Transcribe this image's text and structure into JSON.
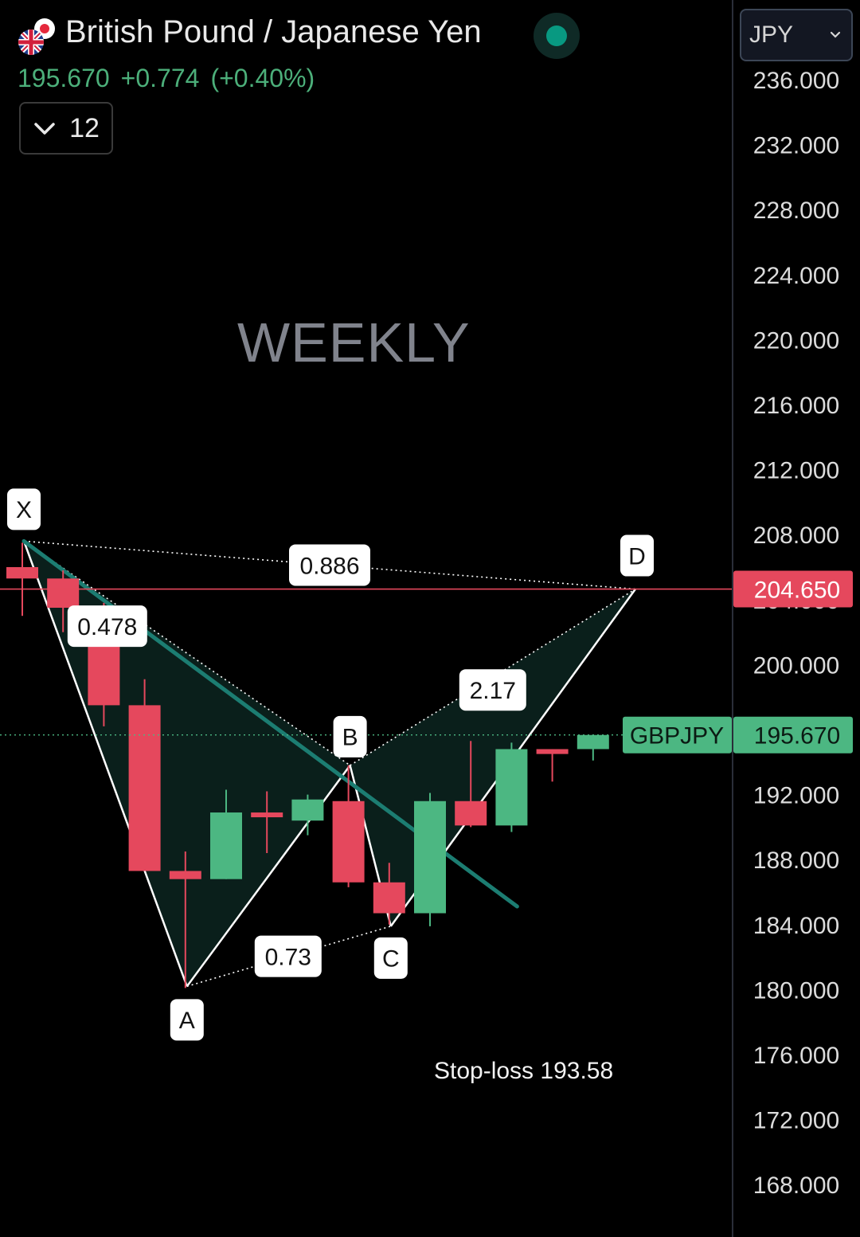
{
  "header": {
    "title": "British Pound / Japanese Yen",
    "last_price": "195.670",
    "change": "+0.774",
    "change_pct": "(+0.40%)",
    "collapse_count": "12",
    "currency": "JPY",
    "flag_icon": "uk-japan-flag-icon",
    "status_color": "#089981"
  },
  "watermark": "WEEKLY",
  "annotation": "Stop-loss 193.58",
  "colors": {
    "up": "#4cb782",
    "down": "#e5485d",
    "pattern_fill": "#0a1f1b",
    "trendline": "#1c7d72",
    "price_line": "#e5485d"
  },
  "chart_data": {
    "type": "candlestick",
    "symbol": "GBPJPY",
    "timeframe": "WEEKLY",
    "ylim": [
      165.0,
      240.0
    ],
    "yticks": [
      "236.000",
      "232.000",
      "228.000",
      "224.000",
      "220.000",
      "216.000",
      "212.000",
      "208.000",
      "204.000",
      "200.000",
      "196.000",
      "192.000",
      "188.000",
      "184.000",
      "180.000",
      "176.000",
      "172.000",
      "168.000"
    ],
    "candles": [
      {
        "open": 206.0,
        "high": 207.5,
        "low": 203.0,
        "close": 205.3
      },
      {
        "open": 205.3,
        "high": 205.8,
        "low": 202.0,
        "close": 203.5
      },
      {
        "open": 203.5,
        "high": 203.8,
        "low": 196.2,
        "close": 197.5
      },
      {
        "open": 197.5,
        "high": 199.1,
        "low": 187.3,
        "close": 187.3
      },
      {
        "open": 187.3,
        "high": 188.5,
        "low": 180.1,
        "close": 186.8
      },
      {
        "open": 186.8,
        "high": 192.3,
        "low": 186.8,
        "close": 190.9
      },
      {
        "open": 190.9,
        "high": 192.2,
        "low": 188.4,
        "close": 190.7
      },
      {
        "open": 190.4,
        "high": 192.0,
        "low": 189.5,
        "close": 191.7
      },
      {
        "open": 191.6,
        "high": 193.8,
        "low": 186.3,
        "close": 186.6
      },
      {
        "open": 186.6,
        "high": 187.8,
        "low": 184.0,
        "close": 184.7
      },
      {
        "open": 184.7,
        "high": 192.1,
        "low": 183.9,
        "close": 191.6
      },
      {
        "open": 191.6,
        "high": 195.3,
        "low": 190.0,
        "close": 190.1
      },
      {
        "open": 190.1,
        "high": 195.2,
        "low": 189.7,
        "close": 194.8
      },
      {
        "open": 194.8,
        "high": 194.8,
        "low": 192.8,
        "close": 194.5
      },
      {
        "open": 194.8,
        "high": 195.7,
        "low": 194.1,
        "close": 195.67
      }
    ],
    "current_price": "195.670",
    "current_price_value": 195.67,
    "current_label": "GBPJPY",
    "red_line_price": "204.650",
    "red_line_value": 204.65,
    "pattern": {
      "points": [
        {
          "label": "X",
          "bar": 0,
          "price": 207.6
        },
        {
          "label": "A",
          "bar": 4,
          "price": 180.2
        },
        {
          "label": "B",
          "bar": 8,
          "price": 193.8
        },
        {
          "label": "C",
          "bar": 9,
          "price": 183.9
        },
        {
          "label": "D",
          "bar": 15,
          "price": 204.65
        }
      ],
      "ratios": [
        {
          "text": "0.478"
        },
        {
          "text": "0.73"
        },
        {
          "text": "2.17"
        },
        {
          "text": "0.886"
        }
      ]
    },
    "trendline": {
      "from": {
        "bar": 0,
        "price": 207.6
      },
      "to": {
        "bar": 12,
        "price": 186.0
      }
    }
  }
}
